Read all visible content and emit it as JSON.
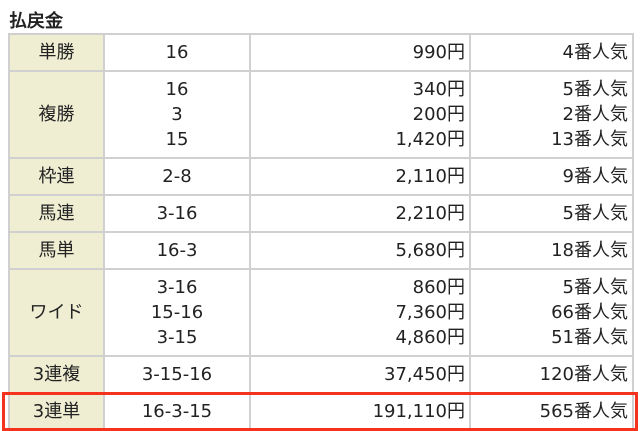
{
  "title": "払戻金",
  "highlight_color": "#f5321e",
  "rows": [
    {
      "kind": "単勝",
      "entries": [
        {
          "num": "16",
          "pay": "990円",
          "pop": "4番人気"
        }
      ]
    },
    {
      "kind": "複勝",
      "entries": [
        {
          "num": "16",
          "pay": "340円",
          "pop": "5番人気"
        },
        {
          "num": "3",
          "pay": "200円",
          "pop": "2番人気"
        },
        {
          "num": "15",
          "pay": "1,420円",
          "pop": "13番人気"
        }
      ]
    },
    {
      "kind": "枠連",
      "entries": [
        {
          "num": "2-8",
          "pay": "2,110円",
          "pop": "9番人気"
        }
      ]
    },
    {
      "kind": "馬連",
      "entries": [
        {
          "num": "3-16",
          "pay": "2,210円",
          "pop": "5番人気"
        }
      ]
    },
    {
      "kind": "馬単",
      "entries": [
        {
          "num": "16-3",
          "pay": "5,680円",
          "pop": "18番人気"
        }
      ]
    },
    {
      "kind": "ワイド",
      "entries": [
        {
          "num": "3-16",
          "pay": "860円",
          "pop": "5番人気"
        },
        {
          "num": "15-16",
          "pay": "7,360円",
          "pop": "66番人気"
        },
        {
          "num": "3-15",
          "pay": "4,860円",
          "pop": "51番人気"
        }
      ]
    },
    {
      "kind": "3連複",
      "entries": [
        {
          "num": "3-15-16",
          "pay": "37,450円",
          "pop": "120番人気"
        }
      ]
    },
    {
      "kind": "3連単",
      "entries": [
        {
          "num": "16-3-15",
          "pay": "191,110円",
          "pop": "565番人気"
        }
      ],
      "highlighted": true
    }
  ]
}
